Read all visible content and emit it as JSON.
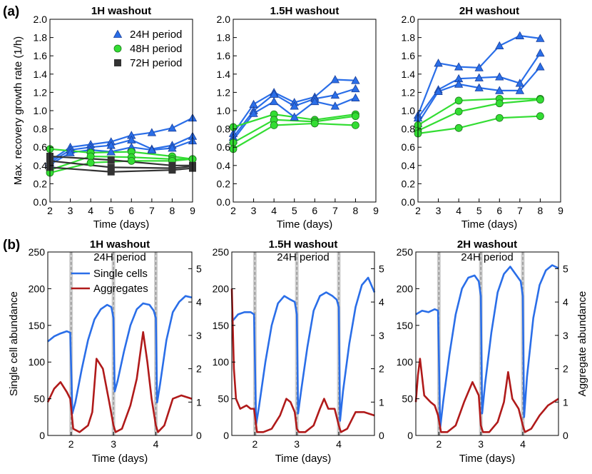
{
  "panel_labels": [
    "(a)",
    "(b)"
  ],
  "chart_data": [
    {
      "type": "line",
      "title": "1H washout",
      "xlabel": "Time (days)",
      "ylabel": "Max. recovery growth rate (1/h)",
      "xlim": [
        2,
        9
      ],
      "ylim": [
        0.0,
        2.0
      ],
      "xticks": [
        "2",
        "3",
        "4",
        "5",
        "6",
        "7",
        "8",
        "9"
      ],
      "yticks": [
        "0.0",
        "0.2",
        "0.4",
        "0.6",
        "0.8",
        "1.0",
        "1.2",
        "1.4",
        "1.6",
        "1.8",
        "2.0"
      ],
      "legend": [
        {
          "label": "24H period",
          "color": "#2a6ee8",
          "marker": "triangle"
        },
        {
          "label": "48H period",
          "color": "#33dd33",
          "marker": "circle"
        },
        {
          "label": "72H period",
          "color": "#333333",
          "marker": "square"
        }
      ],
      "series": [
        {
          "name": "24H period",
          "color": "#2a6ee8",
          "marker": "triangle",
          "x": [
            2,
            3,
            4,
            5,
            6,
            7,
            8,
            9
          ],
          "y": [
            0.45,
            0.6,
            0.63,
            0.66,
            0.73,
            0.76,
            0.81,
            0.92
          ]
        },
        {
          "name": "24H period",
          "color": "#2a6ee8",
          "marker": "triangle",
          "x": [
            2,
            3,
            4,
            5,
            6,
            7,
            8,
            9
          ],
          "y": [
            0.43,
            0.57,
            0.6,
            0.62,
            0.68,
            0.58,
            0.62,
            0.72
          ]
        },
        {
          "name": "24H period",
          "color": "#2a6ee8",
          "marker": "triangle",
          "x": [
            2,
            3,
            4,
            5,
            6,
            7,
            8,
            9
          ],
          "y": [
            0.41,
            0.54,
            0.57,
            0.55,
            0.6,
            0.57,
            0.59,
            0.67
          ]
        },
        {
          "name": "48H period",
          "color": "#33dd33",
          "marker": "circle",
          "x": [
            2,
            4,
            6,
            8,
            9
          ],
          "y": [
            0.58,
            0.54,
            0.55,
            0.5,
            0.47
          ]
        },
        {
          "name": "48H period",
          "color": "#33dd33",
          "marker": "circle",
          "x": [
            2,
            4,
            6,
            8,
            9
          ],
          "y": [
            0.35,
            0.5,
            0.49,
            0.47,
            0.47
          ]
        },
        {
          "name": "48H period",
          "color": "#33dd33",
          "marker": "circle",
          "x": [
            2,
            4,
            6,
            8,
            9
          ],
          "y": [
            0.32,
            0.43,
            0.45,
            0.45,
            0.47
          ]
        },
        {
          "name": "72H period",
          "color": "#333333",
          "marker": "square",
          "x": [
            2,
            5,
            8,
            9
          ],
          "y": [
            0.5,
            0.46,
            0.4,
            0.4
          ]
        },
        {
          "name": "72H period",
          "color": "#333333",
          "marker": "square",
          "x": [
            2,
            5,
            8,
            9
          ],
          "y": [
            0.45,
            0.38,
            0.37,
            0.39
          ]
        },
        {
          "name": "72H period",
          "color": "#333333",
          "marker": "square",
          "x": [
            2,
            5,
            8,
            9
          ],
          "y": [
            0.38,
            0.33,
            0.35,
            0.37
          ]
        }
      ]
    },
    {
      "type": "line",
      "title": "1.5H washout",
      "xlabel": "Time (days)",
      "ylabel": "",
      "xlim": [
        2,
        9
      ],
      "ylim": [
        0.0,
        2.0
      ],
      "xticks": [
        "2",
        "3",
        "4",
        "5",
        "6",
        "7",
        "8",
        "9"
      ],
      "yticks": [
        "0.0",
        "0.2",
        "0.4",
        "0.6",
        "0.8",
        "1.0",
        "1.2",
        "1.4",
        "1.6",
        "1.8",
        "2.0"
      ],
      "series": [
        {
          "name": "24H period",
          "color": "#2a6ee8",
          "marker": "triangle",
          "x": [
            2,
            3,
            4,
            5,
            6,
            7,
            8
          ],
          "y": [
            0.75,
            1.07,
            1.2,
            1.09,
            1.15,
            1.34,
            1.33
          ]
        },
        {
          "name": "24H period",
          "color": "#2a6ee8",
          "marker": "triangle",
          "x": [
            2,
            3,
            4,
            5,
            6,
            7,
            8
          ],
          "y": [
            0.71,
            1.0,
            1.18,
            1.05,
            1.13,
            1.17,
            1.24
          ]
        },
        {
          "name": "24H period",
          "color": "#2a6ee8",
          "marker": "triangle",
          "x": [
            2,
            3,
            4,
            5,
            6,
            7,
            8
          ],
          "y": [
            0.68,
            0.97,
            1.1,
            0.93,
            1.1,
            1.05,
            1.14
          ]
        },
        {
          "name": "48H period",
          "color": "#33dd33",
          "marker": "circle",
          "x": [
            2,
            4,
            6,
            8
          ],
          "y": [
            0.82,
            0.96,
            0.9,
            0.96
          ]
        },
        {
          "name": "48H period",
          "color": "#33dd33",
          "marker": "circle",
          "x": [
            2,
            4,
            6,
            8
          ],
          "y": [
            0.65,
            0.9,
            0.88,
            0.94
          ]
        },
        {
          "name": "48H period",
          "color": "#33dd33",
          "marker": "circle",
          "x": [
            2,
            4,
            6,
            8
          ],
          "y": [
            0.58,
            0.84,
            0.86,
            0.84
          ]
        }
      ]
    },
    {
      "type": "line",
      "title": "2H washout",
      "xlabel": "Time (days)",
      "ylabel": "",
      "xlim": [
        2,
        9
      ],
      "ylim": [
        0.0,
        2.0
      ],
      "xticks": [
        "2",
        "3",
        "4",
        "5",
        "6",
        "7",
        "8",
        "9"
      ],
      "yticks": [
        "0.0",
        "0.2",
        "0.4",
        "0.6",
        "0.8",
        "1.0",
        "1.2",
        "1.4",
        "1.6",
        "1.8",
        "2.0"
      ],
      "series": [
        {
          "name": "24H period",
          "color": "#2a6ee8",
          "marker": "triangle",
          "x": [
            2,
            3,
            4,
            5,
            6,
            7,
            8
          ],
          "y": [
            0.95,
            1.52,
            1.48,
            1.47,
            1.71,
            1.82,
            1.79
          ]
        },
        {
          "name": "24H period",
          "color": "#2a6ee8",
          "marker": "triangle",
          "x": [
            2,
            3,
            4,
            5,
            6,
            7,
            8
          ],
          "y": [
            0.92,
            1.23,
            1.35,
            1.36,
            1.37,
            1.3,
            1.63
          ]
        },
        {
          "name": "24H period",
          "color": "#2a6ee8",
          "marker": "triangle",
          "x": [
            2,
            3,
            4,
            5,
            6,
            7,
            8
          ],
          "y": [
            0.86,
            1.21,
            1.29,
            1.25,
            1.22,
            1.22,
            1.48
          ]
        },
        {
          "name": "48H period",
          "color": "#33dd33",
          "marker": "circle",
          "x": [
            2,
            4,
            6,
            8
          ],
          "y": [
            0.84,
            1.11,
            1.13,
            1.13
          ]
        },
        {
          "name": "48H period",
          "color": "#33dd33",
          "marker": "circle",
          "x": [
            2,
            4,
            6,
            8
          ],
          "y": [
            0.78,
            0.99,
            1.08,
            1.12
          ]
        },
        {
          "name": "48H period",
          "color": "#33dd33",
          "marker": "circle",
          "x": [
            2,
            4,
            6,
            8
          ],
          "y": [
            0.75,
            0.81,
            0.92,
            0.94
          ]
        }
      ]
    },
    {
      "type": "line",
      "title": "1H washout",
      "subtitle": "24H period",
      "xlabel": "Time (days)",
      "ylabel": "Single cell abundance",
      "xlim": [
        1.45,
        4.85
      ],
      "ylim": [
        0,
        250
      ],
      "y2lim": [
        0,
        5.5
      ],
      "xticks": [
        "2",
        "3",
        "4"
      ],
      "yticks": [
        "0",
        "50",
        "100",
        "150",
        "200",
        "250"
      ],
      "y2ticks": [
        "0",
        "1",
        "2",
        "3",
        "4",
        "5"
      ],
      "washouts": [
        2.0,
        3.0,
        4.0
      ],
      "legend": [
        {
          "label": "Single cells",
          "color": "#2a6ee8"
        },
        {
          "label": "Aggregates",
          "color": "#b01a1a"
        }
      ],
      "series": [
        {
          "name": "Single cells",
          "axis": "left",
          "color": "#2a6ee8",
          "x": [
            1.45,
            1.6,
            1.75,
            1.9,
            1.98,
            2.03,
            2.1,
            2.25,
            2.4,
            2.55,
            2.7,
            2.85,
            2.95,
            3.0,
            3.03,
            3.1,
            3.25,
            3.4,
            3.55,
            3.7,
            3.85,
            3.95,
            4.0,
            4.03,
            4.1,
            4.25,
            4.4,
            4.55,
            4.7,
            4.85
          ],
          "y": [
            128,
            135,
            139,
            142,
            140,
            30,
            45,
            90,
            130,
            158,
            172,
            178,
            175,
            160,
            60,
            75,
            115,
            150,
            172,
            180,
            178,
            170,
            160,
            45,
            70,
            130,
            168,
            182,
            190,
            188
          ]
        },
        {
          "name": "Aggregates",
          "axis": "right",
          "color": "#b01a1a",
          "x": [
            1.45,
            1.6,
            1.75,
            1.9,
            1.98,
            2.05,
            2.2,
            2.4,
            2.5,
            2.6,
            2.75,
            2.9,
            3.0,
            3.05,
            3.2,
            3.4,
            3.55,
            3.7,
            3.8,
            3.9,
            4.0,
            4.05,
            4.2,
            4.4,
            4.6,
            4.85
          ],
          "y": [
            1.0,
            1.4,
            1.6,
            1.3,
            1.1,
            0.2,
            0.1,
            0.3,
            0.7,
            2.3,
            2.0,
            1.0,
            0.3,
            0.1,
            0.2,
            0.9,
            1.7,
            3.1,
            2.2,
            1.1,
            0.3,
            0.1,
            0.3,
            1.1,
            1.2,
            1.1
          ]
        }
      ]
    },
    {
      "type": "line",
      "title": "1.5H washout",
      "subtitle": "24H period",
      "xlabel": "Time (days)",
      "ylabel": "",
      "xlim": [
        1.45,
        4.85
      ],
      "ylim": [
        0,
        250
      ],
      "y2lim": [
        0,
        5.5
      ],
      "xticks": [
        "2",
        "3",
        "4"
      ],
      "yticks": [
        "0",
        "50",
        "100",
        "150",
        "200",
        "250"
      ],
      "y2ticks": [
        "0",
        "1",
        "2",
        "3",
        "4",
        "5"
      ],
      "washouts": [
        2.0,
        3.0,
        4.0
      ],
      "series": [
        {
          "name": "Single cells",
          "axis": "left",
          "color": "#2a6ee8",
          "x": [
            1.45,
            1.6,
            1.75,
            1.9,
            1.98,
            2.03,
            2.1,
            2.25,
            2.4,
            2.55,
            2.7,
            2.85,
            2.95,
            3.0,
            3.03,
            3.1,
            3.25,
            3.4,
            3.55,
            3.7,
            3.85,
            3.95,
            4.0,
            4.03,
            4.1,
            4.25,
            4.4,
            4.55,
            4.7,
            4.85
          ],
          "y": [
            155,
            165,
            168,
            168,
            165,
            15,
            40,
            100,
            150,
            180,
            190,
            185,
            182,
            165,
            30,
            60,
            120,
            170,
            190,
            195,
            190,
            185,
            175,
            20,
            60,
            125,
            175,
            205,
            215,
            195
          ]
        },
        {
          "name": "Aggregates",
          "axis": "right",
          "color": "#b01a1a",
          "x": [
            1.45,
            1.5,
            1.55,
            1.65,
            1.8,
            1.9,
            1.98,
            2.05,
            2.2,
            2.4,
            2.6,
            2.75,
            2.85,
            2.95,
            3.0,
            3.05,
            3.2,
            3.4,
            3.55,
            3.65,
            3.75,
            3.9,
            4.0,
            4.05,
            4.2,
            4.4,
            4.6,
            4.85
          ],
          "y": [
            4.4,
            2.0,
            1.1,
            0.8,
            0.9,
            0.8,
            0.8,
            0.1,
            0.1,
            0.2,
            0.6,
            1.1,
            1.0,
            0.7,
            0.2,
            0.1,
            0.1,
            0.3,
            0.8,
            1.1,
            0.8,
            0.8,
            0.3,
            0.1,
            0.2,
            0.7,
            0.7,
            0.6
          ]
        }
      ]
    },
    {
      "type": "line",
      "title": "2H washout",
      "subtitle": "24H period",
      "xlabel": "Time (days)",
      "ylabel": "Aggregate abundance",
      "xlim": [
        1.45,
        4.85
      ],
      "ylim": [
        0,
        250
      ],
      "y2lim": [
        0,
        5.5
      ],
      "xticks": [
        "2",
        "3",
        "4"
      ],
      "yticks": [
        "0",
        "50",
        "100",
        "150",
        "200",
        "250"
      ],
      "y2ticks": [
        "0",
        "1",
        "2",
        "3",
        "4",
        "5"
      ],
      "washouts": [
        2.0,
        3.0,
        4.0
      ],
      "series": [
        {
          "name": "Single cells",
          "axis": "left",
          "color": "#2a6ee8",
          "x": [
            1.45,
            1.6,
            1.75,
            1.9,
            1.98,
            2.03,
            2.1,
            2.25,
            2.4,
            2.55,
            2.7,
            2.85,
            2.95,
            3.0,
            3.03,
            3.1,
            3.25,
            3.4,
            3.55,
            3.7,
            3.85,
            3.95,
            4.0,
            4.03,
            4.1,
            4.25,
            4.4,
            4.55,
            4.7,
            4.85
          ],
          "y": [
            165,
            170,
            168,
            172,
            170,
            10,
            45,
            110,
            165,
            200,
            215,
            218,
            210,
            190,
            30,
            70,
            140,
            195,
            220,
            230,
            218,
            210,
            190,
            25,
            80,
            160,
            205,
            225,
            232,
            228
          ]
        },
        {
          "name": "Aggregates",
          "axis": "right",
          "color": "#b01a1a",
          "x": [
            1.45,
            1.5,
            1.55,
            1.65,
            1.8,
            1.9,
            1.98,
            2.05,
            2.2,
            2.4,
            2.6,
            2.8,
            2.95,
            3.0,
            3.05,
            3.2,
            3.4,
            3.55,
            3.65,
            3.75,
            3.9,
            4.0,
            4.05,
            4.2,
            4.4,
            4.6,
            4.85
          ],
          "y": [
            1.0,
            1.8,
            2.3,
            1.2,
            1.0,
            0.9,
            0.6,
            0.1,
            0.1,
            0.3,
            1.0,
            1.6,
            1.2,
            0.3,
            0.1,
            0.1,
            0.4,
            1.0,
            1.9,
            1.1,
            0.8,
            0.3,
            0.1,
            0.2,
            0.6,
            0.9,
            1.1
          ]
        }
      ]
    }
  ]
}
